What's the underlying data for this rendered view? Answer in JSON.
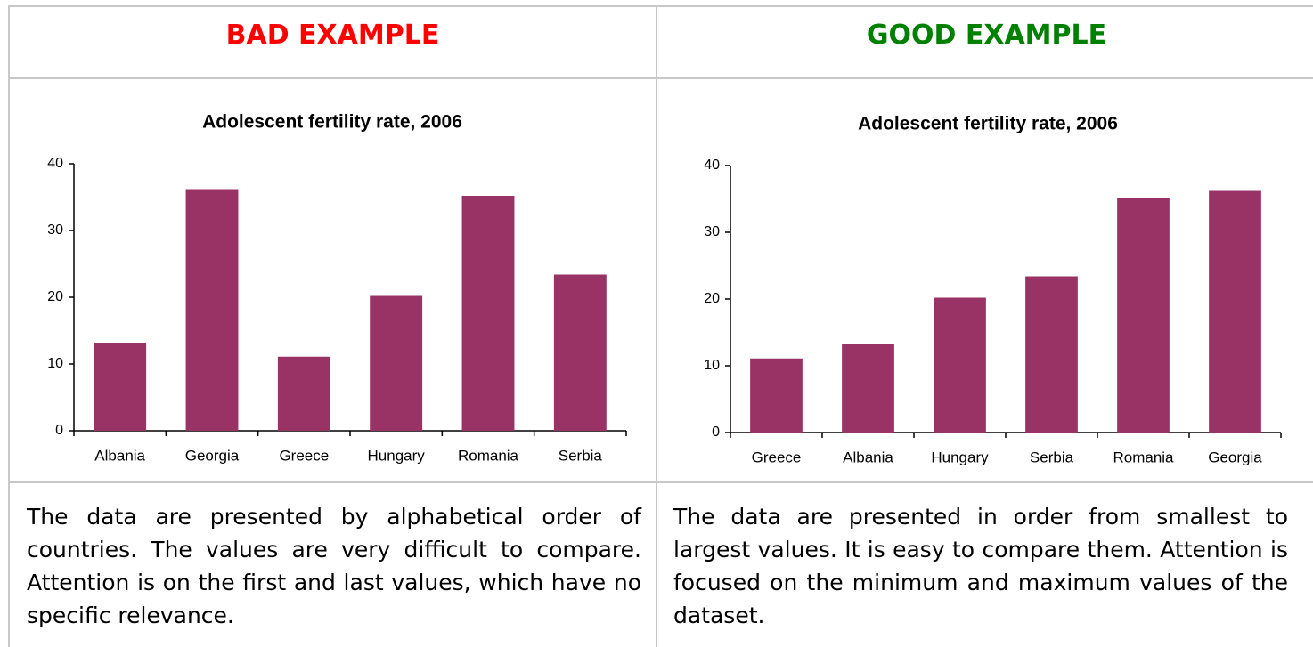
{
  "header": [
    {
      "text": "BAD EXAMPLE",
      "color": "#ff0000"
    },
    {
      "text": "GOOD EXAMPLE",
      "color": "#008000"
    }
  ],
  "chart_data": [
    {
      "type": "bar",
      "title": "Adolescent fertility rate, 2006",
      "categories": [
        "Albania",
        "Georgia",
        "Greece",
        "Hungary",
        "Romania",
        "Serbia"
      ],
      "values": [
        13.2,
        36.2,
        11.1,
        20.2,
        35.2,
        23.4
      ],
      "color": "#993366",
      "ylim": [
        0,
        40
      ],
      "yticks": [
        0,
        10,
        20,
        30,
        40
      ],
      "grid": false
    },
    {
      "type": "bar",
      "title": "Adolescent fertility rate, 2006",
      "categories": [
        "Greece",
        "Albania",
        "Hungary",
        "Serbia",
        "Romania",
        "Georgia"
      ],
      "values": [
        11.1,
        13.2,
        20.2,
        23.4,
        35.2,
        36.2
      ],
      "color": "#993366",
      "ylim": [
        0,
        40
      ],
      "yticks": [
        0,
        10,
        20,
        30,
        40
      ],
      "grid": false
    }
  ],
  "descriptions": [
    "The data are presented by alphabetical order of countries. The values are very difficult to compare. Attention is on the first and last values, which have no specific relevance.",
    "The data are presented in order from smallest to largest values. It is easy to compare them. Attention is focused on the minimum and maximum values of the dataset."
  ]
}
